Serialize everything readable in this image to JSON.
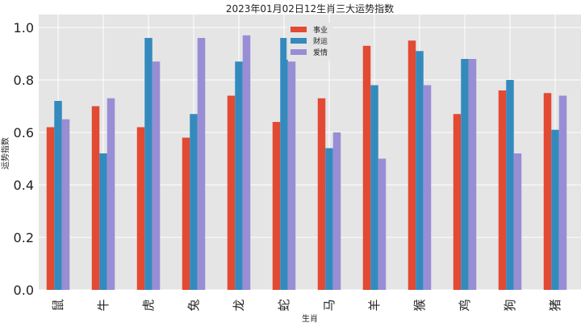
{
  "chart_data": {
    "type": "bar",
    "title": "2023年01月02日12生肖三大运势指数",
    "xlabel": "生肖",
    "ylabel": "运势指数",
    "categories": [
      "鼠",
      "牛",
      "虎",
      "兔",
      "龙",
      "蛇",
      "马",
      "羊",
      "猴",
      "鸡",
      "狗",
      "猪"
    ],
    "series": [
      {
        "name": "事业",
        "color": "#E24A33",
        "values": [
          0.62,
          0.7,
          0.62,
          0.58,
          0.74,
          0.64,
          0.73,
          0.93,
          0.95,
          0.67,
          0.76,
          0.75
        ]
      },
      {
        "name": "财运",
        "color": "#348ABD",
        "values": [
          0.72,
          0.52,
          0.96,
          0.67,
          0.87,
          0.96,
          0.54,
          0.78,
          0.91,
          0.88,
          0.8,
          0.61
        ]
      },
      {
        "name": "爱情",
        "color": "#988ED5",
        "values": [
          0.65,
          0.73,
          0.87,
          0.96,
          0.97,
          0.87,
          0.6,
          0.5,
          0.78,
          0.88,
          0.52,
          0.74
        ]
      }
    ],
    "ylim": [
      0,
      1.0
    ],
    "yticks": [
      "0.0",
      "0.2",
      "0.4",
      "0.6",
      "0.8",
      "1.0"
    ],
    "grid": true,
    "legend": "top-center",
    "background": "#E5E5E5"
  }
}
